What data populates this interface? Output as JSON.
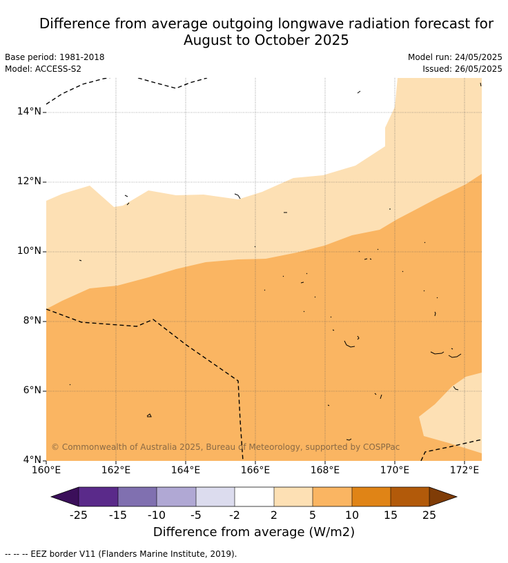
{
  "title_line1": "Difference from average outgoing longwave radiation forecast for",
  "title_line2": "August to October 2025",
  "base_period": "Base period: 1981-2018",
  "model": "Model: ACCESS-S2",
  "model_run": "Model run: 24/05/2025",
  "issued": "Issued: 26/05/2025",
  "lat_labels": [
    "14°N",
    "12°N",
    "10°N",
    "8°N",
    "6°N",
    "4°N"
  ],
  "lon_labels": [
    "160°E",
    "162°E",
    "164°E",
    "166°E",
    "168°E",
    "170°E",
    "172°E"
  ],
  "copyright": "© Commonwealth of Australia 2025, Bureau of Meteorology, supported by COSPPac",
  "colorbar": {
    "ticks": [
      "-25",
      "-15",
      "-10",
      "-5",
      "-2",
      "2",
      "5",
      "10",
      "15",
      "25"
    ],
    "colors": [
      "#3b0f5a",
      "#5a2a8a",
      "#8070b0",
      "#b0a8d4",
      "#dcdcee",
      "#ffffff",
      "#fde0b4",
      "#fab562",
      "#e08416",
      "#b25a0a",
      "#7f3c07"
    ],
    "label": "Difference from average (W/m2)"
  },
  "legend_note": "--  --  -- EEZ border V11 (Flanders Marine Institute, 2019).",
  "map_colors": {
    "light_orange": "#fde0b4",
    "mid_orange": "#fab562",
    "white": "#ffffff"
  }
}
